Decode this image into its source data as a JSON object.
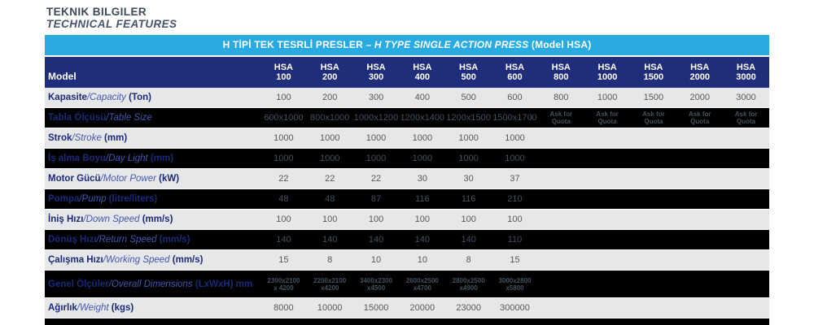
{
  "title": {
    "line1": "TEKNIK BILGILER",
    "line2": "TECHNICAL FEATURES"
  },
  "banner": {
    "part_tr": "H TİPİ TEK TESRLİ PRESLER – ",
    "part_en_italic": "H TYPE SINGLE ACTION PRESS",
    "part_suffix": " (Model HSA)"
  },
  "colors": {
    "banner_blue": "#29abe2",
    "header_navy": "#202d7a",
    "row_light": "#e6e7e8",
    "row_dark": "#000000",
    "label_navy": "#1b2a78",
    "label_italic_blue": "#4356b2",
    "value_gray": "#57585a",
    "value_on_dark": "#44505e"
  },
  "table": {
    "model_header": "Model",
    "columns": [
      {
        "brand": "HSA",
        "model": "100"
      },
      {
        "brand": "HSA",
        "model": "200"
      },
      {
        "brand": "HSA",
        "model": "300"
      },
      {
        "brand": "HSA",
        "model": "400"
      },
      {
        "brand": "HSA",
        "model": "500"
      },
      {
        "brand": "HSA",
        "model": "600"
      },
      {
        "brand": "HSA",
        "model": "800"
      },
      {
        "brand": "HSA",
        "model": "1000"
      },
      {
        "brand": "HSA",
        "model": "1500"
      },
      {
        "brand": "HSA",
        "model": "2000"
      },
      {
        "brand": "HSA",
        "model": "3000"
      }
    ],
    "rows": [
      {
        "tr": "Kapasite",
        "en": "/Capacity",
        "unit": " (Ton)",
        "shade": "light",
        "tall": false,
        "values": [
          "100",
          "200",
          "300",
          "400",
          "500",
          "600",
          "800",
          "1000",
          "1500",
          "2000",
          "3000"
        ]
      },
      {
        "tr": "Tabla Ölçüsü",
        "en": "/Table Size",
        "unit": "",
        "shade": "dark",
        "tall": false,
        "values": [
          "600x1000",
          "800x1000",
          "1000x1200",
          "1200x1400",
          "1200x1500",
          "1500x1700",
          "Ask for\nQuota",
          "Ask for\nQuota",
          "Ask for\nQuota",
          "Ask for\nQuota",
          "Ask for\nQuota"
        ]
      },
      {
        "tr": "Strok",
        "en": "/Stroke",
        "unit": " (mm)",
        "shade": "light",
        "tall": false,
        "values": [
          "1000",
          "1000",
          "1000",
          "1000",
          "1000",
          "1000",
          "",
          "",
          "",
          "",
          ""
        ]
      },
      {
        "tr": "İş alma Boyu",
        "en": "/Day Light",
        "unit": " (mm)",
        "shade": "dark",
        "tall": false,
        "values": [
          "1000",
          "1000",
          "1000",
          "1000",
          "1000",
          "1000",
          "",
          "",
          "",
          "",
          ""
        ]
      },
      {
        "tr": "Motor Gücü",
        "en": "/Motor Power",
        "unit": " (kW)",
        "shade": "light",
        "tall": false,
        "values": [
          "22",
          "22",
          "22",
          "30",
          "30",
          "37",
          "",
          "",
          "",
          "",
          ""
        ]
      },
      {
        "tr": "Pompa",
        "en": "/Pump",
        "unit": " (litre/liters)",
        "shade": "dark",
        "tall": false,
        "values": [
          "48",
          "48",
          "87",
          "116",
          "116",
          "210",
          "",
          "",
          "",
          "",
          ""
        ]
      },
      {
        "tr": "İniş Hızı",
        "en": "/Down Speed",
        "unit": " (mm/s)",
        "shade": "light",
        "tall": false,
        "values": [
          "100",
          "100",
          "100",
          "100",
          "100",
          "100",
          "",
          "",
          "",
          "",
          ""
        ]
      },
      {
        "tr": "Dönüş Hızı",
        "en": "/Return Speed",
        "unit": " (mm/s)",
        "shade": "dark",
        "tall": false,
        "values": [
          "140",
          "140",
          "140",
          "140",
          "140",
          "110",
          "",
          "",
          "",
          "",
          ""
        ]
      },
      {
        "tr": "Çalışma Hızı",
        "en": "/Working Speed",
        "unit": " (mm/s)",
        "shade": "light",
        "tall": false,
        "values": [
          "15",
          "8",
          "10",
          "10",
          "8",
          "15",
          "",
          "",
          "",
          "",
          ""
        ]
      },
      {
        "tr": "Genel Ölçüler",
        "en": "/Overall Dimensions",
        "unit": " (LxWxH) mm",
        "shade": "dark",
        "tall": true,
        "values": [
          "2300x2100\nx 4200",
          "2200x2100\nx4200",
          "3400x2300\nx4500",
          "2600x2500\nx4700",
          "2800x2500\nx4900",
          "3000x2800\nx5800",
          "",
          "",
          "",
          "",
          ""
        ]
      },
      {
        "tr": "Ağırlık",
        "en": "/Weight",
        "unit": " (kgs)",
        "shade": "light",
        "tall": false,
        "values": [
          "8000",
          "10000",
          "15000",
          "20000",
          "23000",
          "300000",
          "",
          "",
          "",
          "",
          ""
        ]
      }
    ]
  }
}
